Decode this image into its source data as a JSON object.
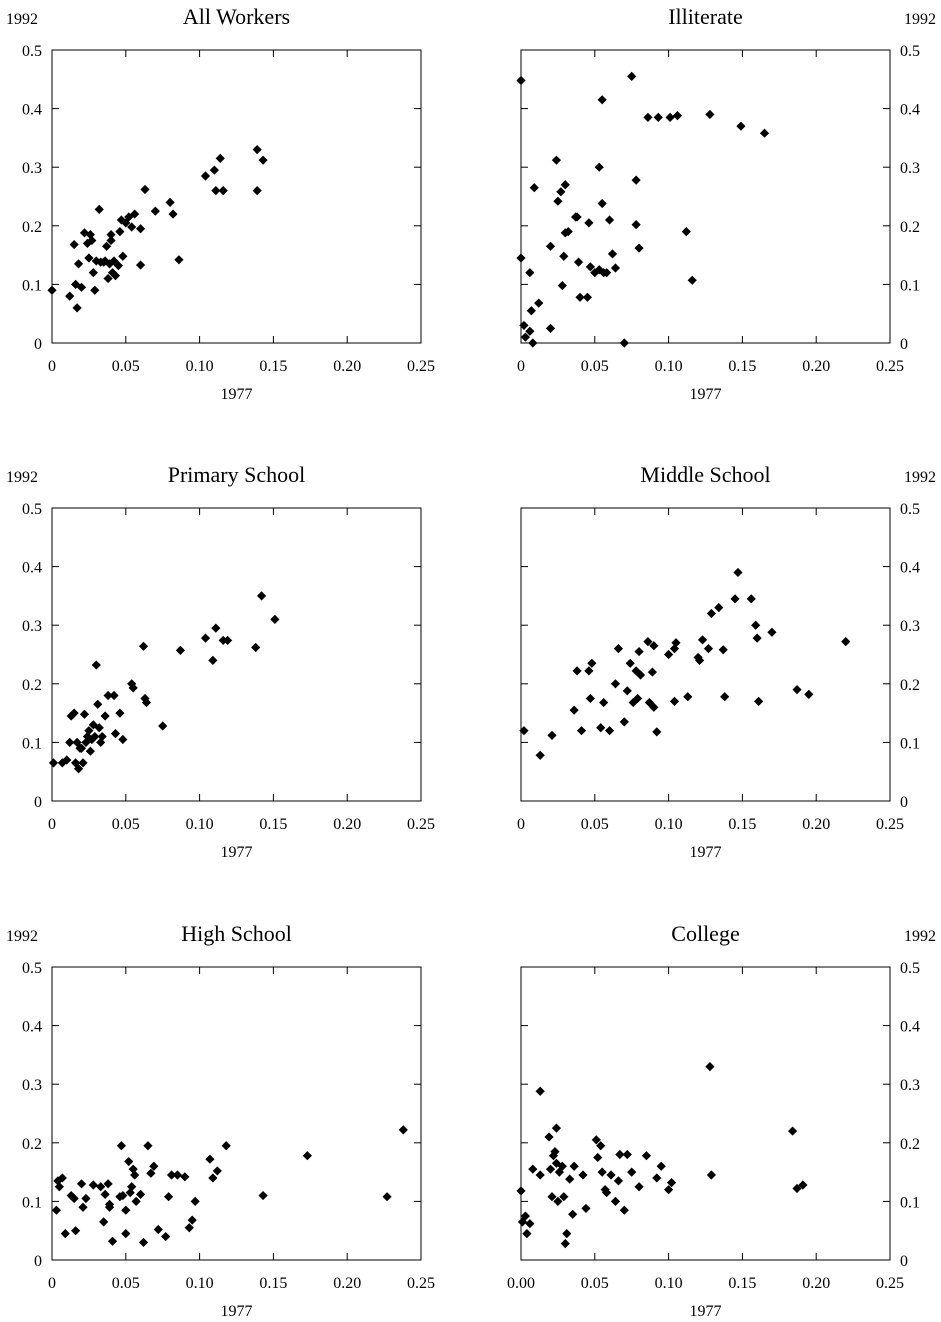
{
  "chart_data": [
    {
      "type": "scatter",
      "title": "All Workers",
      "xlabel": "1977",
      "ylabel": "1992",
      "xlim": [
        0,
        0.25
      ],
      "ylim": [
        0,
        0.5
      ],
      "xticks": [
        "0",
        "0.05",
        "0.10",
        "0.15",
        "0.20",
        "0.25"
      ],
      "yticks": [
        "0",
        "0.1",
        "0.2",
        "0.3",
        "0.4",
        "0.5"
      ],
      "y_axis_side": "left",
      "grid": false,
      "points": [
        [
          0.0,
          0.09
        ],
        [
          0.012,
          0.08
        ],
        [
          0.015,
          0.168
        ],
        [
          0.016,
          0.1
        ],
        [
          0.017,
          0.06
        ],
        [
          0.018,
          0.135
        ],
        [
          0.02,
          0.095
        ],
        [
          0.022,
          0.188
        ],
        [
          0.024,
          0.17
        ],
        [
          0.025,
          0.145
        ],
        [
          0.026,
          0.185
        ],
        [
          0.027,
          0.175
        ],
        [
          0.028,
          0.12
        ],
        [
          0.029,
          0.09
        ],
        [
          0.03,
          0.14
        ],
        [
          0.032,
          0.228
        ],
        [
          0.033,
          0.138
        ],
        [
          0.035,
          0.138
        ],
        [
          0.036,
          0.14
        ],
        [
          0.037,
          0.165
        ],
        [
          0.038,
          0.11
        ],
        [
          0.039,
          0.135
        ],
        [
          0.04,
          0.175
        ],
        [
          0.04,
          0.185
        ],
        [
          0.041,
          0.12
        ],
        [
          0.042,
          0.14
        ],
        [
          0.043,
          0.115
        ],
        [
          0.045,
          0.132
        ],
        [
          0.046,
          0.19
        ],
        [
          0.047,
          0.21
        ],
        [
          0.048,
          0.148
        ],
        [
          0.05,
          0.205
        ],
        [
          0.052,
          0.215
        ],
        [
          0.054,
          0.198
        ],
        [
          0.056,
          0.22
        ],
        [
          0.06,
          0.195
        ],
        [
          0.06,
          0.133
        ],
        [
          0.063,
          0.262
        ],
        [
          0.07,
          0.225
        ],
        [
          0.08,
          0.24
        ],
        [
          0.082,
          0.22
        ],
        [
          0.086,
          0.142
        ],
        [
          0.104,
          0.285
        ],
        [
          0.11,
          0.295
        ],
        [
          0.111,
          0.26
        ],
        [
          0.114,
          0.315
        ],
        [
          0.116,
          0.26
        ],
        [
          0.139,
          0.33
        ],
        [
          0.139,
          0.26
        ],
        [
          0.143,
          0.312
        ]
      ]
    },
    {
      "type": "scatter",
      "title": "Illiterate",
      "xlabel": "1977",
      "ylabel": "1992",
      "xlim": [
        0,
        0.25
      ],
      "ylim": [
        0,
        0.5
      ],
      "xticks": [
        "0",
        "0.05",
        "0.10",
        "0.15",
        "0.20",
        "0.25"
      ],
      "yticks": [
        "0",
        "0.1",
        "0.2",
        "0.3",
        "0.4",
        "0.5"
      ],
      "y_axis_side": "right",
      "grid": false,
      "points": [
        [
          0.0,
          0.448
        ],
        [
          0.0,
          0.145
        ],
        [
          0.002,
          0.03
        ],
        [
          0.003,
          0.01
        ],
        [
          0.006,
          0.02
        ],
        [
          0.006,
          0.12
        ],
        [
          0.007,
          0.055
        ],
        [
          0.008,
          0.0
        ],
        [
          0.009,
          0.265
        ],
        [
          0.012,
          0.068
        ],
        [
          0.02,
          0.025
        ],
        [
          0.02,
          0.165
        ],
        [
          0.024,
          0.312
        ],
        [
          0.025,
          0.242
        ],
        [
          0.027,
          0.258
        ],
        [
          0.028,
          0.098
        ],
        [
          0.029,
          0.148
        ],
        [
          0.03,
          0.27
        ],
        [
          0.03,
          0.188
        ],
        [
          0.032,
          0.19
        ],
        [
          0.037,
          0.215
        ],
        [
          0.038,
          0.215
        ],
        [
          0.039,
          0.138
        ],
        [
          0.04,
          0.078
        ],
        [
          0.045,
          0.078
        ],
        [
          0.046,
          0.205
        ],
        [
          0.047,
          0.13
        ],
        [
          0.05,
          0.12
        ],
        [
          0.053,
          0.3
        ],
        [
          0.053,
          0.125
        ],
        [
          0.055,
          0.415
        ],
        [
          0.055,
          0.238
        ],
        [
          0.056,
          0.12
        ],
        [
          0.058,
          0.12
        ],
        [
          0.06,
          0.21
        ],
        [
          0.062,
          0.152
        ],
        [
          0.064,
          0.128
        ],
        [
          0.07,
          0.0
        ],
        [
          0.075,
          0.455
        ],
        [
          0.078,
          0.278
        ],
        [
          0.078,
          0.202
        ],
        [
          0.08,
          0.162
        ],
        [
          0.086,
          0.385
        ],
        [
          0.093,
          0.385
        ],
        [
          0.101,
          0.385
        ],
        [
          0.106,
          0.388
        ],
        [
          0.112,
          0.19
        ],
        [
          0.116,
          0.107
        ],
        [
          0.128,
          0.39
        ],
        [
          0.149,
          0.37
        ],
        [
          0.165,
          0.358
        ]
      ]
    },
    {
      "type": "scatter",
      "title": "Primary School",
      "xlabel": "1977",
      "ylabel": "1992",
      "xlim": [
        0,
        0.25
      ],
      "ylim": [
        0,
        0.5
      ],
      "xticks": [
        "0",
        "0.05",
        "0.10",
        "0.15",
        "0.20",
        "0.25"
      ],
      "yticks": [
        "0",
        "0.1",
        "0.2",
        "0.3",
        "0.4",
        "0.5"
      ],
      "y_axis_side": "left",
      "grid": false,
      "points": [
        [
          0.001,
          0.065
        ],
        [
          0.007,
          0.065
        ],
        [
          0.01,
          0.07
        ],
        [
          0.012,
          0.1
        ],
        [
          0.013,
          0.145
        ],
        [
          0.015,
          0.15
        ],
        [
          0.016,
          0.065
        ],
        [
          0.017,
          0.1
        ],
        [
          0.018,
          0.055
        ],
        [
          0.019,
          0.09
        ],
        [
          0.02,
          0.09
        ],
        [
          0.021,
          0.065
        ],
        [
          0.022,
          0.148
        ],
        [
          0.023,
          0.1
        ],
        [
          0.024,
          0.11
        ],
        [
          0.025,
          0.12
        ],
        [
          0.026,
          0.085
        ],
        [
          0.027,
          0.105
        ],
        [
          0.028,
          0.13
        ],
        [
          0.029,
          0.11
        ],
        [
          0.03,
          0.232
        ],
        [
          0.031,
          0.165
        ],
        [
          0.032,
          0.125
        ],
        [
          0.033,
          0.1
        ],
        [
          0.034,
          0.11
        ],
        [
          0.036,
          0.145
        ],
        [
          0.038,
          0.18
        ],
        [
          0.042,
          0.18
        ],
        [
          0.043,
          0.115
        ],
        [
          0.046,
          0.15
        ],
        [
          0.048,
          0.105
        ],
        [
          0.054,
          0.2
        ],
        [
          0.055,
          0.193
        ],
        [
          0.062,
          0.264
        ],
        [
          0.063,
          0.175
        ],
        [
          0.064,
          0.168
        ],
        [
          0.075,
          0.128
        ],
        [
          0.087,
          0.257
        ],
        [
          0.104,
          0.278
        ],
        [
          0.109,
          0.24
        ],
        [
          0.111,
          0.295
        ],
        [
          0.116,
          0.274
        ],
        [
          0.119,
          0.274
        ],
        [
          0.138,
          0.262
        ],
        [
          0.142,
          0.35
        ],
        [
          0.151,
          0.31
        ]
      ]
    },
    {
      "type": "scatter",
      "title": "Middle School",
      "xlabel": "1977",
      "ylabel": "1992",
      "xlim": [
        0,
        0.25
      ],
      "ylim": [
        0,
        0.5
      ],
      "xticks": [
        "0",
        "0.05",
        "0.10",
        "0.15",
        "0.20",
        "0.25"
      ],
      "yticks": [
        "0",
        "0.1",
        "0.2",
        "0.3",
        "0.4",
        "0.5"
      ],
      "y_axis_side": "right",
      "grid": false,
      "points": [
        [
          0.002,
          0.12
        ],
        [
          0.013,
          0.078
        ],
        [
          0.021,
          0.112
        ],
        [
          0.036,
          0.155
        ],
        [
          0.038,
          0.222
        ],
        [
          0.041,
          0.12
        ],
        [
          0.046,
          0.222
        ],
        [
          0.047,
          0.175
        ],
        [
          0.048,
          0.235
        ],
        [
          0.054,
          0.125
        ],
        [
          0.056,
          0.168
        ],
        [
          0.06,
          0.12
        ],
        [
          0.064,
          0.2
        ],
        [
          0.066,
          0.26
        ],
        [
          0.07,
          0.135
        ],
        [
          0.072,
          0.188
        ],
        [
          0.074,
          0.235
        ],
        [
          0.076,
          0.168
        ],
        [
          0.078,
          0.222
        ],
        [
          0.079,
          0.175
        ],
        [
          0.08,
          0.255
        ],
        [
          0.081,
          0.215
        ],
        [
          0.086,
          0.272
        ],
        [
          0.087,
          0.168
        ],
        [
          0.089,
          0.22
        ],
        [
          0.09,
          0.16
        ],
        [
          0.09,
          0.265
        ],
        [
          0.092,
          0.118
        ],
        [
          0.1,
          0.25
        ],
        [
          0.104,
          0.17
        ],
        [
          0.104,
          0.26
        ],
        [
          0.105,
          0.27
        ],
        [
          0.113,
          0.178
        ],
        [
          0.12,
          0.245
        ],
        [
          0.121,
          0.24
        ],
        [
          0.123,
          0.275
        ],
        [
          0.127,
          0.26
        ],
        [
          0.129,
          0.32
        ],
        [
          0.134,
          0.33
        ],
        [
          0.137,
          0.258
        ],
        [
          0.138,
          0.178
        ],
        [
          0.145,
          0.345
        ],
        [
          0.147,
          0.39
        ],
        [
          0.156,
          0.345
        ],
        [
          0.159,
          0.3
        ],
        [
          0.16,
          0.278
        ],
        [
          0.161,
          0.17
        ],
        [
          0.17,
          0.288
        ],
        [
          0.187,
          0.19
        ],
        [
          0.195,
          0.182
        ],
        [
          0.22,
          0.272
        ]
      ]
    },
    {
      "type": "scatter",
      "title": "High School",
      "xlabel": "1977",
      "ylabel": "1992",
      "xlim": [
        0,
        0.25
      ],
      "ylim": [
        0,
        0.5
      ],
      "xticks": [
        "0",
        "0.05",
        "0.10",
        "0.15",
        "0.20",
        "0.25"
      ],
      "yticks": [
        "0",
        "0.1",
        "0.2",
        "0.3",
        "0.4",
        "0.5"
      ],
      "y_axis_side": "left",
      "grid": false,
      "points": [
        [
          0.003,
          0.085
        ],
        [
          0.004,
          0.135
        ],
        [
          0.005,
          0.125
        ],
        [
          0.007,
          0.14
        ],
        [
          0.009,
          0.045
        ],
        [
          0.013,
          0.11
        ],
        [
          0.015,
          0.105
        ],
        [
          0.016,
          0.05
        ],
        [
          0.02,
          0.13
        ],
        [
          0.021,
          0.09
        ],
        [
          0.023,
          0.105
        ],
        [
          0.028,
          0.128
        ],
        [
          0.033,
          0.125
        ],
        [
          0.035,
          0.065
        ],
        [
          0.036,
          0.112
        ],
        [
          0.038,
          0.13
        ],
        [
          0.039,
          0.095
        ],
        [
          0.039,
          0.09
        ],
        [
          0.041,
          0.032
        ],
        [
          0.046,
          0.108
        ],
        [
          0.047,
          0.195
        ],
        [
          0.048,
          0.11
        ],
        [
          0.05,
          0.085
        ],
        [
          0.05,
          0.045
        ],
        [
          0.052,
          0.168
        ],
        [
          0.053,
          0.115
        ],
        [
          0.054,
          0.125
        ],
        [
          0.055,
          0.155
        ],
        [
          0.056,
          0.145
        ],
        [
          0.057,
          0.1
        ],
        [
          0.06,
          0.112
        ],
        [
          0.062,
          0.03
        ],
        [
          0.065,
          0.195
        ],
        [
          0.067,
          0.148
        ],
        [
          0.069,
          0.16
        ],
        [
          0.072,
          0.052
        ],
        [
          0.077,
          0.04
        ],
        [
          0.079,
          0.108
        ],
        [
          0.081,
          0.145
        ],
        [
          0.085,
          0.145
        ],
        [
          0.09,
          0.142
        ],
        [
          0.093,
          0.055
        ],
        [
          0.095,
          0.068
        ],
        [
          0.097,
          0.1
        ],
        [
          0.107,
          0.172
        ],
        [
          0.109,
          0.14
        ],
        [
          0.112,
          0.152
        ],
        [
          0.118,
          0.195
        ],
        [
          0.143,
          0.11
        ],
        [
          0.173,
          0.178
        ],
        [
          0.227,
          0.108
        ],
        [
          0.238,
          0.222
        ]
      ]
    },
    {
      "type": "scatter",
      "title": "College",
      "xlabel": "1977",
      "ylabel": "1992",
      "xlim": [
        0,
        0.25
      ],
      "ylim": [
        0,
        0.5
      ],
      "xticks": [
        "0.00",
        "0.05",
        "0.10",
        "0.15",
        "0.20",
        "0.25"
      ],
      "yticks": [
        "0",
        "0.1",
        "0.2",
        "0.3",
        "0.4",
        "0.5"
      ],
      "y_axis_side": "right",
      "grid": false,
      "points": [
        [
          0.0,
          0.118
        ],
        [
          0.001,
          0.065
        ],
        [
          0.003,
          0.075
        ],
        [
          0.004,
          0.045
        ],
        [
          0.006,
          0.062
        ],
        [
          0.008,
          0.155
        ],
        [
          0.013,
          0.288
        ],
        [
          0.013,
          0.145
        ],
        [
          0.019,
          0.21
        ],
        [
          0.02,
          0.155
        ],
        [
          0.021,
          0.108
        ],
        [
          0.022,
          0.178
        ],
        [
          0.023,
          0.185
        ],
        [
          0.024,
          0.165
        ],
        [
          0.024,
          0.225
        ],
        [
          0.025,
          0.1
        ],
        [
          0.026,
          0.15
        ],
        [
          0.028,
          0.16
        ],
        [
          0.029,
          0.108
        ],
        [
          0.03,
          0.028
        ],
        [
          0.031,
          0.045
        ],
        [
          0.033,
          0.138
        ],
        [
          0.035,
          0.078
        ],
        [
          0.036,
          0.16
        ],
        [
          0.042,
          0.145
        ],
        [
          0.044,
          0.088
        ],
        [
          0.051,
          0.205
        ],
        [
          0.052,
          0.175
        ],
        [
          0.054,
          0.195
        ],
        [
          0.055,
          0.15
        ],
        [
          0.057,
          0.12
        ],
        [
          0.058,
          0.115
        ],
        [
          0.061,
          0.145
        ],
        [
          0.064,
          0.1
        ],
        [
          0.066,
          0.135
        ],
        [
          0.067,
          0.18
        ],
        [
          0.07,
          0.085
        ],
        [
          0.072,
          0.18
        ],
        [
          0.075,
          0.15
        ],
        [
          0.08,
          0.125
        ],
        [
          0.085,
          0.178
        ],
        [
          0.092,
          0.14
        ],
        [
          0.095,
          0.16
        ],
        [
          0.1,
          0.12
        ],
        [
          0.102,
          0.132
        ],
        [
          0.128,
          0.33
        ],
        [
          0.129,
          0.145
        ],
        [
          0.184,
          0.22
        ],
        [
          0.187,
          0.122
        ],
        [
          0.191,
          0.128
        ]
      ]
    }
  ]
}
